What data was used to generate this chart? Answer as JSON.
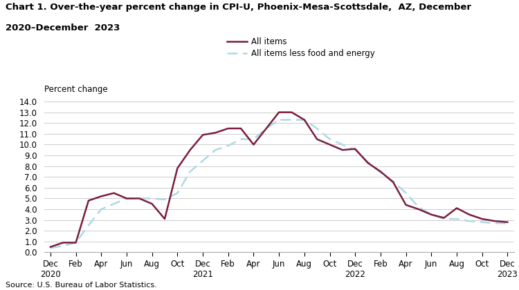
{
  "title_line1": "Chart 1. Over-the-year percent change in CPI-U, Phoenix-Mesa-Scottsdale,  AZ, December",
  "title_line2": "2020–December  2023",
  "ylabel": "Percent change",
  "source": "Source: U.S. Bureau of Labor Statistics.",
  "legend_labels": [
    "All items",
    "All items less food and energy"
  ],
  "ylim": [
    0.0,
    14.0
  ],
  "yticks": [
    0.0,
    1.0,
    2.0,
    3.0,
    4.0,
    5.0,
    6.0,
    7.0,
    8.0,
    9.0,
    10.0,
    11.0,
    12.0,
    13.0,
    14.0
  ],
  "all_items_vals": [
    0.5,
    0.9,
    0.9,
    4.8,
    5.2,
    5.5,
    5.0,
    5.0,
    4.5,
    3.1,
    7.8,
    9.5,
    10.9,
    11.1,
    11.5,
    11.5,
    10.0,
    11.5,
    13.0,
    13.0,
    12.3,
    10.5,
    10.0,
    9.5,
    9.6,
    8.3,
    7.5,
    6.5,
    4.4,
    4.0,
    3.5,
    3.2,
    4.1,
    3.5,
    3.1,
    2.9,
    2.8
  ],
  "all_less_vals": [
    0.4,
    0.6,
    0.9,
    2.5,
    4.0,
    4.5,
    5.0,
    5.0,
    5.0,
    4.9,
    5.5,
    7.5,
    8.5,
    9.5,
    9.9,
    10.5,
    10.5,
    11.5,
    12.3,
    12.3,
    12.3,
    11.5,
    10.5,
    10.0,
    9.5,
    8.4,
    7.4,
    6.6,
    5.5,
    4.2,
    3.5,
    3.1,
    3.1,
    2.9,
    2.8,
    2.7,
    2.7
  ],
  "xtick_positions": [
    0,
    2,
    4,
    6,
    8,
    10,
    12,
    14,
    16,
    18,
    20,
    22,
    24,
    26,
    28,
    30,
    32,
    34,
    36
  ],
  "xtick_labels": [
    "Dec\n2020",
    "Feb",
    "Apr",
    "Jun",
    "Aug",
    "Oct",
    "Dec\n2021",
    "Feb",
    "Apr",
    "Jun",
    "Aug",
    "Oct",
    "Dec\n2022",
    "Feb",
    "Apr",
    "Jun",
    "Aug",
    "Oct",
    "Dec\n2023"
  ],
  "line1_color": "#7b1c3e",
  "line2_color": "#add8e6",
  "background_color": "#ffffff",
  "grid_color": "#cccccc"
}
